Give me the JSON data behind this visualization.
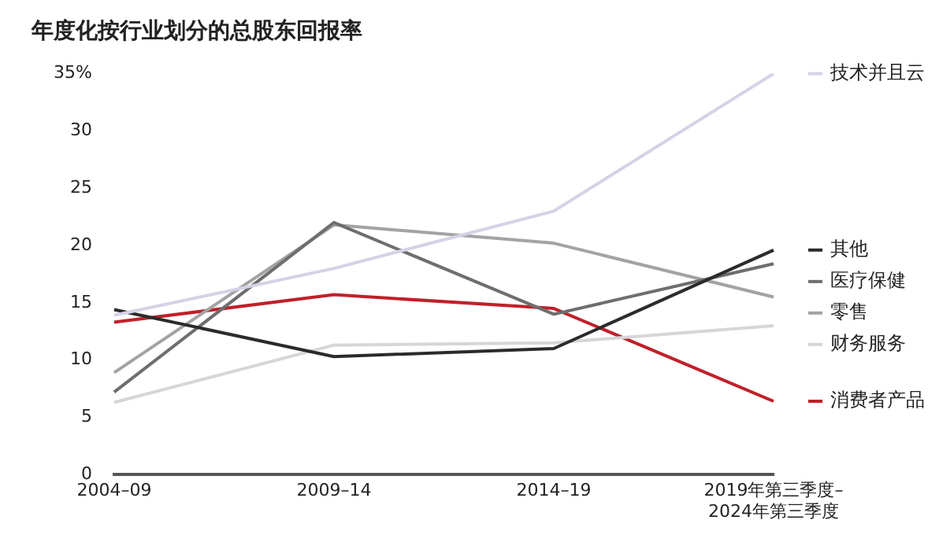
{
  "chart_data": {
    "type": "line",
    "title": "年度化按行业划分的总股东回报率",
    "categories": [
      "2004–09",
      "2009–14",
      "2014–19",
      "2019年第三季度–2024年第三季度"
    ],
    "series": [
      {
        "name": "技术并且云",
        "color": "#d4d2e6",
        "values": [
          13.9,
          18,
          23,
          35
        ]
      },
      {
        "name": "其他",
        "color": "#2b2b2b",
        "values": [
          14.4,
          10.3,
          11,
          19.6
        ]
      },
      {
        "name": "医疗保健",
        "color": "#6e6e6e",
        "values": [
          7.2,
          22,
          14,
          18.4
        ]
      },
      {
        "name": "零售",
        "color": "#a3a3a3",
        "values": [
          8.9,
          21.8,
          20.2,
          15.5
        ]
      },
      {
        "name": "财务服务",
        "color": "#d6d6d6",
        "values": [
          6.3,
          11.3,
          11.5,
          13
        ]
      },
      {
        "name": "消费者产品",
        "color": "#c0202a",
        "values": [
          13.3,
          15.7,
          14.5,
          6.4
        ]
      }
    ],
    "ylim": [
      0,
      35
    ],
    "yticks": [
      0,
      5,
      10,
      15,
      20,
      25,
      30,
      {
        "value": 35,
        "label": "35%"
      }
    ],
    "grid": false,
    "legend": "right",
    "marker": "none",
    "line_style": "solid"
  }
}
